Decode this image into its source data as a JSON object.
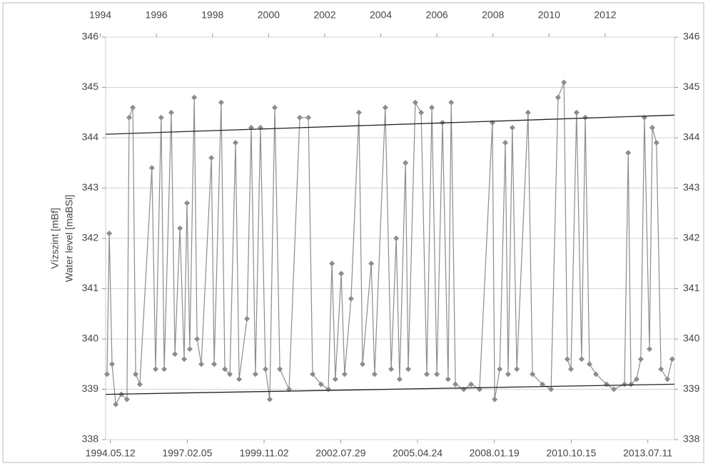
{
  "chart_data": {
    "type": "line",
    "y_label": "Vízszint [mBf]",
    "y_label_2": "Water level [maBSl]",
    "xlim": [
      1994.19,
      2014.47
    ],
    "xticks": [
      {
        "value": 1994.36,
        "label": "1994.05.12"
      },
      {
        "value": 1997.1,
        "label": "1997.02.05"
      },
      {
        "value": 1999.84,
        "label": "1999.11.02"
      },
      {
        "value": 2002.57,
        "label": "2002.07.29"
      },
      {
        "value": 2005.31,
        "label": "2005.04.24"
      },
      {
        "value": 2008.05,
        "label": "2008.01.19"
      },
      {
        "value": 2010.79,
        "label": "2010.10.15"
      },
      {
        "value": 2013.52,
        "label": "2013.07.11"
      }
    ],
    "x2ticks": [
      1994,
      1996,
      1998,
      2000,
      2002,
      2004,
      2006,
      2008,
      2010,
      2012
    ],
    "ylim": [
      338,
      346
    ],
    "yticks": [
      338,
      339,
      340,
      341,
      342,
      343,
      344,
      345,
      346
    ],
    "y2lim": [
      338,
      346
    ],
    "y2ticks": [
      338,
      339,
      340,
      341,
      342,
      343,
      344,
      345,
      346
    ],
    "grid": true,
    "series": [
      {
        "color": "#8c8c8c",
        "marker": "diamond",
        "x": [
          1994.24,
          1994.32,
          1994.42,
          1994.55,
          1994.75,
          1994.95,
          1995.03,
          1995.16,
          1995.26,
          1995.41,
          1995.84,
          1995.97,
          1996.17,
          1996.28,
          1996.53,
          1996.66,
          1996.84,
          1996.99,
          1997.09,
          1997.19,
          1997.35,
          1997.45,
          1997.6,
          1997.96,
          1998.06,
          1998.31,
          1998.44,
          1998.62,
          1998.82,
          1998.95,
          1999.23,
          1999.38,
          1999.53,
          1999.71,
          1999.89,
          2000.04,
          2000.22,
          2000.4,
          2000.73,
          2001.11,
          2001.42,
          2001.57,
          2001.87,
          2002.13,
          2002.26,
          2002.38,
          2002.59,
          2002.71,
          2002.94,
          2003.22,
          2003.35,
          2003.66,
          2003.78,
          2004.16,
          2004.37,
          2004.55,
          2004.67,
          2004.88,
          2004.98,
          2005.23,
          2005.44,
          2005.64,
          2005.82,
          2006.0,
          2006.2,
          2006.4,
          2006.51,
          2006.66,
          2006.96,
          2007.22,
          2007.52,
          2007.98,
          2008.06,
          2008.24,
          2008.44,
          2008.54,
          2008.69,
          2008.85,
          2009.25,
          2009.41,
          2009.76,
          2010.07,
          2010.32,
          2010.53,
          2010.65,
          2010.78,
          2010.98,
          2011.16,
          2011.29,
          2011.44,
          2011.67,
          2012.05,
          2012.31,
          2012.69,
          2012.82,
          2012.92,
          2013.12,
          2013.27,
          2013.4,
          2013.58,
          2013.68,
          2013.83,
          2013.99,
          2014.22,
          2014.39
        ],
        "values": [
          339.3,
          342.1,
          339.5,
          338.7,
          338.9,
          338.8,
          344.4,
          344.6,
          339.3,
          339.1,
          343.4,
          339.4,
          344.4,
          339.4,
          344.5,
          339.7,
          342.2,
          339.6,
          342.7,
          339.8,
          344.8,
          340.0,
          339.5,
          343.6,
          339.5,
          344.7,
          339.4,
          339.3,
          343.9,
          339.2,
          340.4,
          344.2,
          339.3,
          344.2,
          339.4,
          338.8,
          344.6,
          339.4,
          339.0,
          344.4,
          344.4,
          339.3,
          339.1,
          339.0,
          341.5,
          339.2,
          341.3,
          339.3,
          340.8,
          344.5,
          339.5,
          341.5,
          339.3,
          344.6,
          339.4,
          342.0,
          339.2,
          343.5,
          339.4,
          344.7,
          344.5,
          339.3,
          344.6,
          339.3,
          344.3,
          339.2,
          344.7,
          339.1,
          339.0,
          339.1,
          339.0,
          344.3,
          338.8,
          339.4,
          343.9,
          339.3,
          344.2,
          339.4,
          344.5,
          339.3,
          339.1,
          339.0,
          344.8,
          345.1,
          339.6,
          339.4,
          344.5,
          339.6,
          344.4,
          339.5,
          339.3,
          339.1,
          339.0,
          339.1,
          343.7,
          339.1,
          339.2,
          339.6,
          344.4,
          339.8,
          344.2,
          343.9,
          339.4,
          339.2,
          339.6
        ]
      },
      {
        "color": "#222222",
        "x": [
          1994.19,
          2014.47
        ],
        "values": [
          344.07,
          344.45
        ]
      },
      {
        "color": "#222222",
        "x": [
          1994.19,
          2014.47
        ],
        "values": [
          338.9,
          339.1
        ]
      }
    ]
  }
}
